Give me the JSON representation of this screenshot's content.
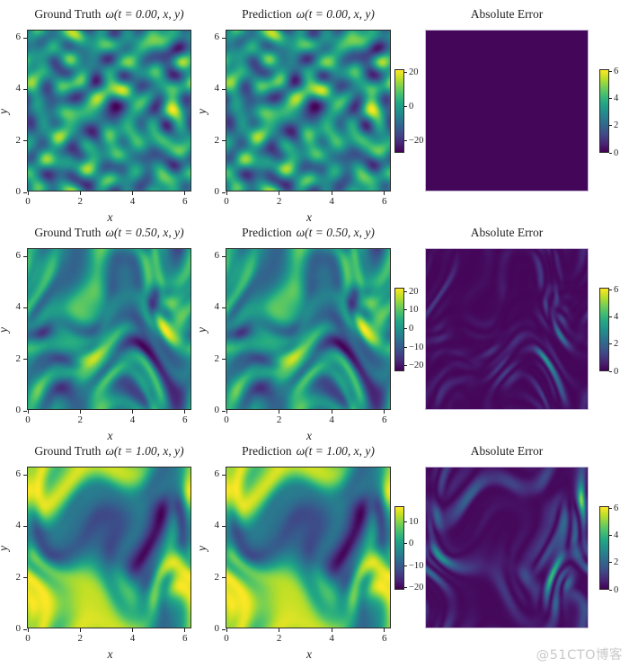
{
  "watermark": {
    "text": "@51CTO博客"
  },
  "chart_data": {
    "type": "heatmap",
    "description": "3x3 grid comparing ground-truth vorticity, predicted vorticity and absolute error of a 2D Navier-Stokes field at t = 0.00, 0.50, 1.00 on a periodic [0, 2pi] x [0, 2pi] domain",
    "colormap": "viridis",
    "colormap_stops": [
      "#440154",
      "#482475",
      "#414487",
      "#355f8d",
      "#2a788e",
      "#21918c",
      "#22a884",
      "#44bf70",
      "#7ad151",
      "#bddf26",
      "#fde725"
    ],
    "x_range": [
      0,
      6.2832
    ],
    "y_range": [
      0,
      6.2832
    ],
    "x_ticks": [
      0,
      2,
      4,
      6
    ],
    "y_ticks": [
      0,
      2,
      4,
      6
    ],
    "x_label": "x",
    "y_label": "y",
    "rows": [
      {
        "t": 0.0,
        "panels": [
          {
            "kind": "field",
            "title_label": "Ground Truth",
            "title_math": "ω(t = 0.00, x, y)",
            "has_axes": true,
            "field": {
              "seed": 101,
              "style": "blobs",
              "level": -1
            }
          },
          {
            "kind": "field",
            "title_label": "Prediction",
            "title_math": "ω(t = 0.00, x, y)",
            "has_axes": true,
            "field": {
              "seed": 101,
              "style": "blobs",
              "level": -1
            },
            "colorbar": {
              "vmin": -27,
              "vmax": 22,
              "ticks": [
                20,
                0,
                -20
              ]
            }
          },
          {
            "kind": "error",
            "title_label": "Absolute Error",
            "title_math": "",
            "has_axes": false,
            "field": {
              "seed": 101,
              "style": "blobs",
              "level": 0
            },
            "colorbar": {
              "vmin": 0,
              "vmax": 6.15,
              "ticks": [
                6,
                4,
                2,
                0
              ]
            }
          }
        ]
      },
      {
        "t": 0.5,
        "panels": [
          {
            "kind": "field",
            "title_label": "Ground Truth",
            "title_math": "ω(t = 0.50, x, y)",
            "has_axes": true,
            "field": {
              "seed": 202,
              "style": "swirl1",
              "level": -1
            }
          },
          {
            "kind": "field",
            "title_label": "Prediction",
            "title_math": "ω(t = 0.50, x, y)",
            "has_axes": true,
            "field": {
              "seed": 202,
              "style": "swirl1",
              "level": -1
            },
            "colorbar": {
              "vmin": -23,
              "vmax": 22,
              "ticks": [
                20,
                10,
                0,
                -10,
                -20
              ]
            }
          },
          {
            "kind": "error",
            "title_label": "Absolute Error",
            "title_math": "",
            "has_axes": false,
            "field": {
              "seed": 202,
              "style": "swirl1",
              "level": 1
            },
            "colorbar": {
              "vmin": 0,
              "vmax": 6.15,
              "ticks": [
                6,
                4,
                2,
                0
              ]
            }
          }
        ]
      },
      {
        "t": 1.0,
        "panels": [
          {
            "kind": "field",
            "title_label": "Ground Truth",
            "title_math": "ω(t = 1.00, x, y)",
            "has_axes": true,
            "field": {
              "seed": 303,
              "style": "swirl2",
              "level": -1
            }
          },
          {
            "kind": "field",
            "title_label": "Prediction",
            "title_math": "ω(t = 1.00, x, y)",
            "has_axes": true,
            "field": {
              "seed": 303,
              "style": "swirl2",
              "level": -1
            },
            "colorbar": {
              "vmin": -21,
              "vmax": 17,
              "ticks": [
                10,
                0,
                -10,
                -20
              ]
            }
          },
          {
            "kind": "error",
            "title_label": "Absolute Error",
            "title_math": "",
            "has_axes": false,
            "field": {
              "seed": 303,
              "style": "swirl2",
              "level": 2
            },
            "colorbar": {
              "vmin": 0,
              "vmax": 6.15,
              "ticks": [
                6,
                4,
                2,
                0
              ]
            }
          }
        ]
      }
    ]
  }
}
